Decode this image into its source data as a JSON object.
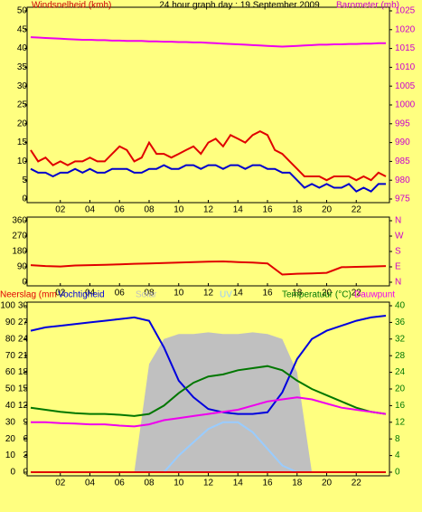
{
  "chart_data": [
    {
      "type": "line",
      "title": "24 hour graph day : 19 September 2009",
      "ylabel": "Windsnelheid (kmh)",
      "ylabel_color": "#cc0000",
      "y2label": "Barometer (mb)",
      "y2label_color": "#cc00cc",
      "x": [
        0,
        0.5,
        1,
        1.5,
        2,
        2.5,
        3,
        3.5,
        4,
        4.5,
        5,
        5.5,
        6,
        6.5,
        7,
        7.5,
        8,
        8.5,
        9,
        9.5,
        10,
        10.5,
        11,
        11.5,
        12,
        12.5,
        13,
        13.5,
        14,
        14.5,
        15,
        15.5,
        16,
        16.5,
        17,
        17.5,
        18,
        18.5,
        19,
        19.5,
        20,
        20.5,
        21,
        21.5,
        22,
        22.5,
        23,
        23.5,
        24
      ],
      "xlim": [
        0,
        24
      ],
      "xticks": [
        {
          "value": 2,
          "label": "02"
        },
        {
          "value": 4,
          "label": "04"
        },
        {
          "value": 6,
          "label": "06"
        },
        {
          "value": 8,
          "label": "08"
        },
        {
          "value": 10,
          "label": "10"
        },
        {
          "value": 12,
          "label": "12"
        },
        {
          "value": 14,
          "label": "14"
        },
        {
          "value": 16,
          "label": "16"
        },
        {
          "value": 18,
          "label": "18"
        },
        {
          "value": 20,
          "label": "20"
        },
        {
          "value": 22,
          "label": "22"
        }
      ],
      "ylim": [
        0,
        50
      ],
      "yticks": [
        0,
        5,
        10,
        15,
        20,
        25,
        30,
        35,
        40,
        45,
        50
      ],
      "y2lim": [
        975,
        1025
      ],
      "y2ticks": [
        975,
        980,
        985,
        990,
        995,
        1000,
        1005,
        1010,
        1015,
        1020,
        1025
      ],
      "y2tick_color": "#cc00cc",
      "series": [
        {
          "color": "#e00000",
          "values": [
            13,
            10,
            11,
            9,
            10,
            9,
            10,
            10,
            11,
            10,
            10,
            12,
            14,
            13,
            10,
            11,
            15,
            12,
            12,
            11,
            12,
            13,
            14,
            12,
            15,
            16,
            14,
            17,
            16,
            15,
            17,
            18,
            17,
            13,
            12,
            10,
            8,
            6,
            6,
            6,
            5,
            6,
            6,
            6,
            5,
            6,
            5,
            7,
            6
          ]
        },
        {
          "color": "#0000cc",
          "values": [
            8,
            7,
            7,
            6,
            7,
            7,
            8,
            7,
            8,
            7,
            7,
            8,
            8,
            8,
            7,
            7,
            8,
            8,
            9,
            8,
            8,
            9,
            9,
            8,
            9,
            9,
            8,
            9,
            9,
            8,
            9,
            9,
            8,
            8,
            7,
            7,
            5,
            3,
            4,
            3,
            4,
            3,
            3,
            4,
            2,
            3,
            2,
            4,
            4
          ]
        },
        {
          "name": "Barometer (mb)",
          "color": "#ee00ee",
          "axis": "y2",
          "values": [
            1018,
            1017.9,
            1017.8,
            1017.7,
            1017.6,
            1017.5,
            1017.4,
            1017.3,
            1017.3,
            1017.2,
            1017.2,
            1017.1,
            1017.1,
            1017,
            1017,
            1017,
            1016.9,
            1016.9,
            1016.8,
            1016.8,
            1016.7,
            1016.7,
            1016.6,
            1016.6,
            1016.5,
            1016.4,
            1016.3,
            1016.2,
            1016.1,
            1016,
            1015.9,
            1015.8,
            1015.7,
            1015.6,
            1015.5,
            1015.6,
            1015.7,
            1015.8,
            1015.9,
            1016,
            1016,
            1016.1,
            1016.1,
            1016.2,
            1016.2,
            1016.3,
            1016.3,
            1016.4,
            1016.4
          ]
        }
      ]
    },
    {
      "type": "line",
      "x": [
        0,
        1,
        2,
        3,
        4,
        5,
        6,
        7,
        8,
        9,
        10,
        11,
        12,
        13,
        14,
        15,
        16,
        17,
        18,
        19,
        20,
        21,
        22,
        23,
        24
      ],
      "xlim": [
        0,
        24
      ],
      "xticks": [
        {
          "value": 2,
          "label": "02"
        },
        {
          "value": 4,
          "label": "04"
        },
        {
          "value": 6,
          "label": "06"
        },
        {
          "value": 8,
          "label": "08"
        },
        {
          "value": 10,
          "label": "10"
        },
        {
          "value": 12,
          "label": "12"
        },
        {
          "value": 14,
          "label": "14"
        },
        {
          "value": 16,
          "label": "16"
        },
        {
          "value": 18,
          "label": "18"
        },
        {
          "value": 20,
          "label": "20"
        },
        {
          "value": 22,
          "label": "22"
        }
      ],
      "ylim": [
        0,
        360
      ],
      "yticks": [
        0,
        90,
        180,
        270,
        360
      ],
      "y2lim": [
        0,
        360
      ],
      "y2ticks": [
        {
          "value": 0,
          "label": "N"
        },
        {
          "value": 90,
          "label": "E"
        },
        {
          "value": 180,
          "label": "S"
        },
        {
          "value": 270,
          "label": "W"
        },
        {
          "value": 360,
          "label": "N"
        }
      ],
      "y2tick_color": "#cc00cc",
      "series": [
        {
          "color": "#e00000",
          "values": [
            100,
            95,
            92,
            98,
            100,
            102,
            105,
            108,
            110,
            112,
            115,
            118,
            120,
            122,
            118,
            115,
            110,
            45,
            50,
            52,
            55,
            88,
            90,
            92,
            95
          ]
        }
      ]
    },
    {
      "type": "line",
      "x": [
        0,
        1,
        2,
        3,
        4,
        5,
        6,
        7,
        8,
        9,
        10,
        11,
        12,
        13,
        14,
        15,
        16,
        17,
        18,
        19,
        20,
        21,
        22,
        23,
        24
      ],
      "xlim": [
        0,
        24
      ],
      "xticks": [
        {
          "value": 2,
          "label": "02"
        },
        {
          "value": 4,
          "label": "04"
        },
        {
          "value": 6,
          "label": "06"
        },
        {
          "value": 8,
          "label": "08"
        },
        {
          "value": 10,
          "label": "10"
        },
        {
          "value": 12,
          "label": "12"
        },
        {
          "value": 14,
          "label": "14"
        },
        {
          "value": 16,
          "label": "16"
        },
        {
          "value": 18,
          "label": "18"
        },
        {
          "value": 20,
          "label": "20"
        },
        {
          "value": 22,
          "label": "22"
        }
      ],
      "ylim": [
        0,
        100
      ],
      "yticks": [
        0,
        10,
        20,
        30,
        40,
        50,
        60,
        70,
        80,
        90,
        100
      ],
      "y3lim": [
        0,
        30
      ],
      "y3ticks": [
        0,
        3,
        6,
        9,
        12,
        15,
        18,
        21,
        24,
        27,
        30
      ],
      "y2lim": [
        0,
        40
      ],
      "y2ticks": [
        0,
        4,
        8,
        12,
        16,
        20,
        24,
        28,
        32,
        36,
        40
      ],
      "y2tick_color": "#007700",
      "series": [
        {
          "name": "Solar",
          "color": "#c0c0c0",
          "kind": "area",
          "values": [
            0,
            0,
            0,
            0,
            0,
            0,
            0,
            0,
            65,
            80,
            83,
            83,
            84,
            83,
            83,
            84,
            83,
            80,
            60,
            0,
            0,
            0,
            0,
            0,
            0
          ]
        },
        {
          "name": "UV",
          "color": "#99ccff",
          "values": [
            0,
            0,
            0,
            0,
            0,
            0,
            0,
            0,
            0,
            0,
            10,
            18,
            26,
            30,
            30,
            24,
            14,
            4,
            0,
            0,
            0,
            0,
            0,
            0,
            0
          ]
        },
        {
          "name": "Neerslag (mm",
          "color": "#e00000",
          "axis": "y3",
          "values": [
            0,
            0,
            0,
            0,
            0,
            0,
            0,
            0,
            0,
            0,
            0,
            0,
            0,
            0,
            0,
            0,
            0,
            0,
            0,
            0,
            0,
            0,
            0,
            0,
            0
          ]
        },
        {
          "name": "Vochtigheid",
          "color": "#0000dd",
          "values": [
            85,
            87,
            88,
            89,
            90,
            91,
            92,
            93,
            91,
            75,
            55,
            45,
            38,
            36,
            35,
            35,
            36,
            48,
            68,
            80,
            85,
            88,
            91,
            93,
            94
          ]
        },
        {
          "name": "Temperatuur (°C)",
          "color": "#007700",
          "axis": "y2",
          "values": [
            15.5,
            15,
            14.5,
            14.2,
            14,
            14,
            13.8,
            13.5,
            14,
            16,
            19,
            21.5,
            23,
            23.5,
            24.5,
            25,
            25.5,
            24.5,
            22,
            20,
            18.5,
            17,
            15.5,
            14.5,
            14
          ]
        },
        {
          "name": "Dauwpunt",
          "color": "#ee00ee",
          "axis": "y2",
          "values": [
            12,
            12,
            11.8,
            11.7,
            11.5,
            11.5,
            11.2,
            11,
            11.5,
            12.5,
            13,
            13.5,
            14,
            14.5,
            15,
            16,
            17,
            17.5,
            18,
            17.5,
            16.5,
            15.5,
            15,
            14.5,
            14
          ]
        }
      ]
    }
  ]
}
